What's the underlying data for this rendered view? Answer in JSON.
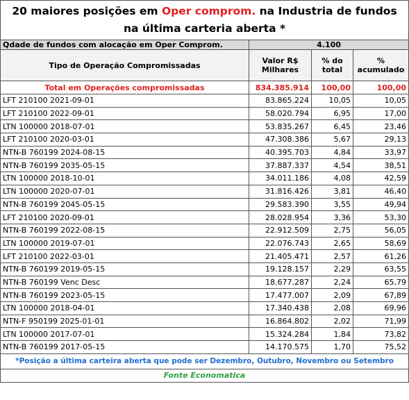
{
  "title": {
    "before": "20 maiores posições em ",
    "highlight": "Oper comprom.",
    "after": " na Industria de fundos  na última carteria aberta *"
  },
  "count_row": {
    "label": "Qdade de fundos com alocação em Oper Comprom.",
    "value": "4.100"
  },
  "header": [
    "Tipo de Operação Compromissadas",
    "Valor R$ Milhares",
    "% do total",
    "% acumulado"
  ],
  "total_row": [
    "Total em Operações compromissadas",
    "834.385.914",
    "100,00",
    "100,00"
  ],
  "rows": [
    [
      "LFT 210100 2021-09-01",
      "83.865.224",
      "10,05",
      "10,05"
    ],
    [
      "LFT 210100 2022-09-01",
      "58.020.794",
      "6,95",
      "17,00"
    ],
    [
      "LTN 100000 2018-07-01",
      "53.835.267",
      "6,45",
      "23,46"
    ],
    [
      "LFT 210100 2020-03-01",
      "47.308.386",
      "5,67",
      "29,13"
    ],
    [
      "NTN-B 760199 2024-08-15",
      "40.395.703",
      "4,84",
      "33,97"
    ],
    [
      "NTN-B 760199 2035-05-15",
      "37.887.337",
      "4,54",
      "38,51"
    ],
    [
      "LTN 100000 2018-10-01",
      "34.011.186",
      "4,08",
      "42,59"
    ],
    [
      "LTN 100000 2020-07-01",
      "31.816.426",
      "3,81",
      "46,40"
    ],
    [
      "NTN-B 760199 2045-05-15",
      "29.583.390",
      "3,55",
      "49,94"
    ],
    [
      "LFT 210100 2020-09-01",
      "28.028.954",
      "3,36",
      "53,30"
    ],
    [
      "NTN-B 760199 2022-08-15",
      "22.912.509",
      "2,75",
      "56,05"
    ],
    [
      "LTN 100000 2019-07-01",
      "22.076.743",
      "2,65",
      "58,69"
    ],
    [
      "LFT 210100 2022-03-01",
      "21.405.471",
      "2,57",
      "61,26"
    ],
    [
      "NTN-B 760199 2019-05-15",
      "19.128.157",
      "2,29",
      "63,55"
    ],
    [
      "NTN-B 760199 Venc Desc",
      "18.677.287",
      "2,24",
      "65,79"
    ],
    [
      "NTN-B 760199 2023-05-15",
      "17.477.007",
      "2,09",
      "67,89"
    ],
    [
      "LTN 100000 2018-04-01",
      "17.340.438",
      "2,08",
      "69,96"
    ],
    [
      "NTN-F 950199 2025-01-01",
      "16.864.802",
      "2,02",
      "71,99"
    ],
    [
      "LTN 100000 2017-07-01",
      "15.324.284",
      "1,84",
      "73,82"
    ],
    [
      "NTN-B 760199 2017-05-15",
      "14.170.575",
      "1,70",
      "75,52"
    ]
  ],
  "footnote": "*Posição a última carteira aberta que pode ser Dezembro, Outubro, Novembro ou Setembro",
  "source": "Fonte Economatica"
}
